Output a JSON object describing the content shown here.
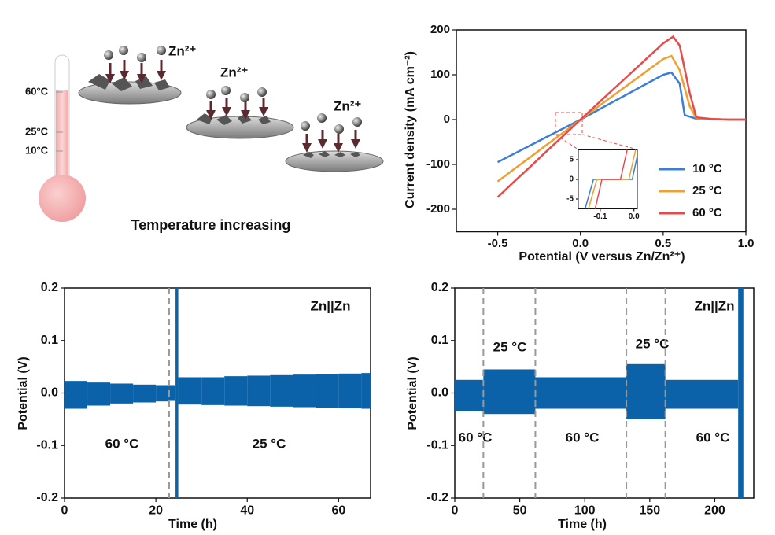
{
  "diagram": {
    "thermometer_labels": [
      "60°C",
      "25°C",
      "10°C"
    ],
    "ions": [
      "Zn²⁺",
      "Zn²⁺",
      "Zn²⁺"
    ],
    "caption": "Temperature increasing"
  },
  "chart_data": [
    {
      "type": "line",
      "xlabel": "Potential (V versus Zn/Zn²⁺)",
      "ylabel": "Current density (mA cm⁻²)",
      "xlim": [
        -0.75,
        1.0
      ],
      "ylim": [
        -250,
        200
      ],
      "xticks": [
        -0.5,
        {
          "value": 0,
          "label": "0.0"
        },
        0.5,
        {
          "value": 1,
          "label": "1.0"
        }
      ],
      "yticks": [
        -200,
        -100,
        0,
        100,
        200
      ],
      "legend": "lower right",
      "series": [
        {
          "name": "10 °C",
          "color": "#3b7dd8",
          "x": [
            -0.5,
            -0.4,
            -0.3,
            -0.2,
            -0.1,
            0,
            0.1,
            0.2,
            0.3,
            0.4,
            0.5,
            0.55,
            0.6,
            0.63,
            0.7,
            0.8,
            0.9,
            1.0
          ],
          "values": [
            -95,
            -76,
            -57,
            -38,
            -19,
            0,
            20,
            40,
            60,
            80,
            100,
            105,
            80,
            10,
            2,
            1,
            0,
            0
          ]
        },
        {
          "name": "25 °C",
          "color": "#f0a030",
          "x": [
            -0.5,
            -0.4,
            -0.3,
            -0.2,
            -0.1,
            0,
            0.1,
            0.2,
            0.3,
            0.4,
            0.5,
            0.55,
            0.6,
            0.66,
            0.7,
            0.8,
            0.9,
            1.0
          ],
          "values": [
            -138,
            -110,
            -83,
            -55,
            -28,
            0,
            27,
            54,
            81,
            108,
            135,
            142,
            110,
            30,
            3,
            1,
            0,
            0
          ]
        },
        {
          "name": "60 °C",
          "color": "#e84a4a",
          "x": [
            -0.5,
            -0.4,
            -0.3,
            -0.2,
            -0.1,
            0,
            0.1,
            0.2,
            0.3,
            0.4,
            0.5,
            0.56,
            0.6,
            0.66,
            0.7,
            0.8,
            0.9,
            1.0
          ],
          "values": [
            -173,
            -138,
            -104,
            -69,
            -35,
            0,
            34,
            68,
            102,
            136,
            170,
            185,
            165,
            60,
            5,
            1,
            0,
            0
          ]
        }
      ]
    },
    {
      "type": "line",
      "xlim": [
        -0.165,
        0.01
      ],
      "ylim": [
        -7.5,
        7.5
      ],
      "xticks": [
        -0.1,
        {
          "value": 0,
          "label": "0.0"
        }
      ],
      "yticks": [
        -5,
        0,
        5
      ],
      "series": [
        {
          "color": "#3b7dd8",
          "x": [
            -0.145,
            -0.12,
            -0.005,
            0.01
          ],
          "values": [
            -7.5,
            0,
            0,
            6
          ]
        },
        {
          "color": "#f0a030",
          "x": [
            -0.135,
            -0.11,
            -0.015,
            0.005
          ],
          "values": [
            -7.5,
            0,
            0,
            7.5
          ]
        },
        {
          "color": "#e84a4a",
          "x": [
            -0.115,
            -0.095,
            -0.04,
            -0.02
          ],
          "values": [
            -7.5,
            0,
            0,
            7.5
          ]
        }
      ]
    },
    {
      "type": "range",
      "xlabel": "Time (h)",
      "ylabel": "Potential (V)",
      "color": "#0b62a8",
      "xlim": [
        0,
        67
      ],
      "ylim": [
        -0.2,
        0.2
      ],
      "xticks": [
        0,
        20,
        40,
        60
      ],
      "yticks": [
        -0.2,
        -0.1,
        {
          "value": 0,
          "label": "0.0"
        },
        0.1,
        0.2
      ],
      "bins": [
        0,
        5,
        10,
        15,
        20,
        22.9,
        24.3,
        24.9,
        30,
        35,
        40,
        45,
        50,
        55,
        60,
        65,
        67
      ],
      "upper": [
        0.023,
        0.02,
        0.018,
        0.016,
        0.015,
        0.015,
        0.2,
        0.03,
        0.03,
        0.032,
        0.033,
        0.034,
        0.035,
        0.036,
        0.037,
        0.038
      ],
      "lower": [
        -0.03,
        -0.024,
        -0.02,
        -0.018,
        -0.016,
        -0.015,
        -0.2,
        -0.022,
        -0.023,
        -0.024,
        -0.025,
        -0.026,
        -0.027,
        -0.028,
        -0.029,
        -0.03
      ],
      "vlines": [
        22.9
      ],
      "annotations": [
        {
          "text": "Zn||Zn",
          "color": "#111111"
        },
        {
          "text": "60 °C",
          "color": "#c0712c"
        },
        {
          "text": "25 °C",
          "color": "#1f8a5f"
        }
      ]
    },
    {
      "type": "range",
      "xlabel": "Time (h)",
      "ylabel": "Potential (V)",
      "color": "#0b62a8",
      "xlim": [
        0,
        230
      ],
      "ylim": [
        -0.2,
        0.2
      ],
      "xticks": [
        0,
        50,
        100,
        150,
        200
      ],
      "yticks": [
        -0.2,
        -0.1,
        {
          "value": 0,
          "label": "0.0"
        },
        0.1,
        0.2
      ],
      "bins": [
        0,
        22,
        62,
        132,
        162,
        218,
        222
      ],
      "upper": [
        0.025,
        0.045,
        0.03,
        0.055,
        0.025,
        0.2
      ],
      "lower": [
        -0.035,
        -0.04,
        -0.03,
        -0.05,
        -0.03,
        -0.2
      ],
      "vlines": [
        22,
        62,
        132,
        162
      ],
      "annotations": [
        {
          "text": "Zn||Zn",
          "color": "#111111"
        },
        {
          "text": "25 °C",
          "color": "#1f8a5f"
        },
        {
          "text": "60 °C",
          "color": "#c0712c"
        },
        {
          "text": "60 °C",
          "color": "#c0712c"
        },
        {
          "text": "25 °C",
          "color": "#1f8a5f"
        },
        {
          "text": "60 °C",
          "color": "#c0712c"
        }
      ]
    }
  ]
}
